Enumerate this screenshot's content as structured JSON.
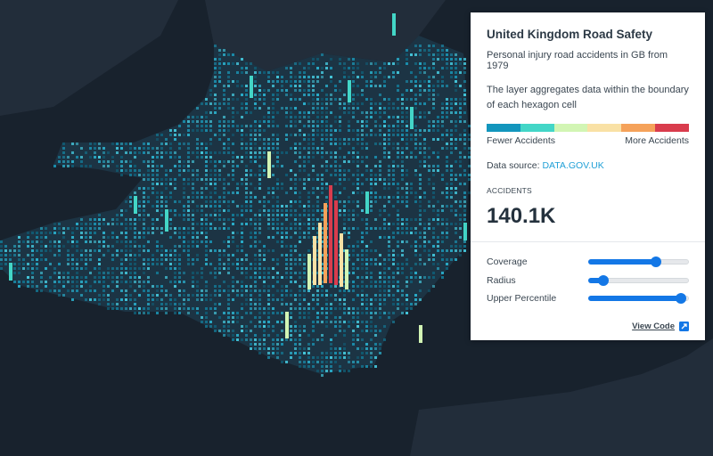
{
  "panel": {
    "title": "United Kingdom Road Safety",
    "subtitle": "Personal injury road accidents in GB from 1979",
    "description": "The layer aggregates data within the boundary of each hexagon cell",
    "scale": {
      "colors": [
        "#1396bd",
        "#43d6c7",
        "#d2f5b4",
        "#f9e1a5",
        "#f5a25a",
        "#d93c4d"
      ],
      "low_label": "Fewer Accidents",
      "high_label": "More Accidents"
    },
    "source_prefix": "Data source: ",
    "source_link": "DATA.GOV.UK",
    "metric_label": "ACCIDENTS",
    "metric_value": "140.1K",
    "controls": [
      {
        "label": "Coverage",
        "value": 0.67
      },
      {
        "label": "Radius",
        "value": 0.15
      },
      {
        "label": "Upper Percentile",
        "value": 0.92
      }
    ],
    "view_code": "View Code"
  }
}
